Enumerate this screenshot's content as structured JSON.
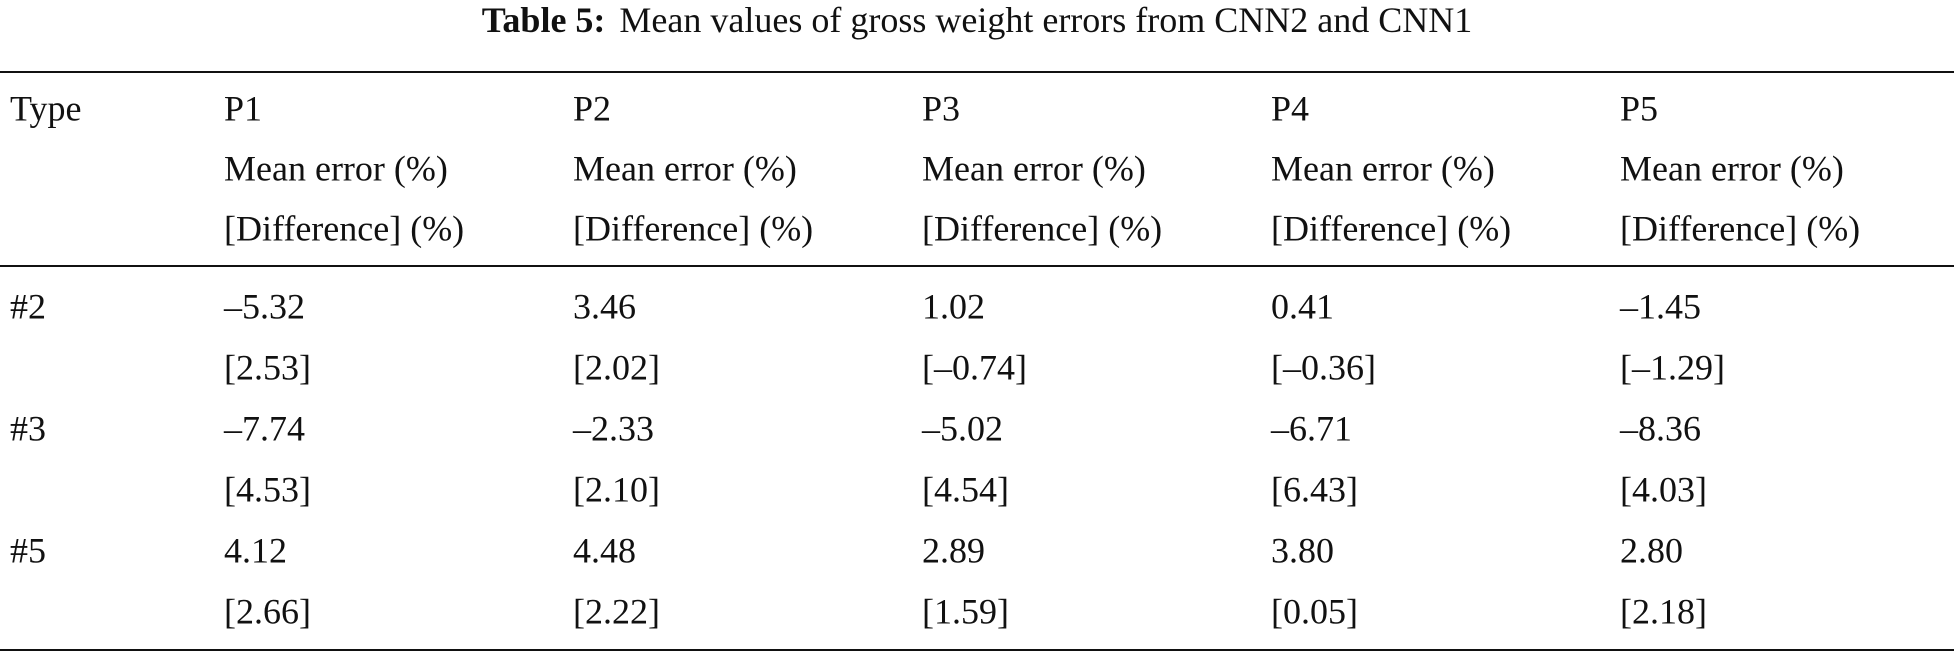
{
  "title": {
    "label": "Table 5:",
    "text": "Mean values of gross weight errors from CNN2 and CNN1"
  },
  "table": {
    "type_header": "Type",
    "columns": [
      {
        "name": "P1",
        "mean_header": "Mean error (%)",
        "diff_header": "[Difference] (%)"
      },
      {
        "name": "P2",
        "mean_header": "Mean error (%)",
        "diff_header": "[Difference] (%)"
      },
      {
        "name": "P3",
        "mean_header": "Mean error (%)",
        "diff_header": "[Difference] (%)"
      },
      {
        "name": "P4",
        "mean_header": "Mean error (%)",
        "diff_header": "[Difference] (%)"
      },
      {
        "name": "P5",
        "mean_header": "Mean error (%)",
        "diff_header": "[Difference] (%)"
      }
    ],
    "rows": [
      {
        "type": "#2",
        "cells": [
          {
            "mean": "–5.32",
            "diff": "[2.53]"
          },
          {
            "mean": "3.46",
            "diff": "[2.02]"
          },
          {
            "mean": "1.02",
            "diff": "[–0.74]"
          },
          {
            "mean": "0.41",
            "diff": "[–0.36]"
          },
          {
            "mean": "–1.45",
            "diff": "[–1.29]"
          }
        ]
      },
      {
        "type": "#3",
        "cells": [
          {
            "mean": "–7.74",
            "diff": "[4.53]"
          },
          {
            "mean": "–2.33",
            "diff": "[2.10]"
          },
          {
            "mean": "–5.02",
            "diff": "[4.54]"
          },
          {
            "mean": "–6.71",
            "diff": "[6.43]"
          },
          {
            "mean": "–8.36",
            "diff": "[4.03]"
          }
        ]
      },
      {
        "type": "#5",
        "cells": [
          {
            "mean": "4.12",
            "diff": "[2.66]"
          },
          {
            "mean": "4.48",
            "diff": "[2.22]"
          },
          {
            "mean": "2.89",
            "diff": "[1.59]"
          },
          {
            "mean": "3.80",
            "diff": "[0.05]"
          },
          {
            "mean": "2.80",
            "diff": "[2.18]"
          }
        ]
      }
    ]
  }
}
